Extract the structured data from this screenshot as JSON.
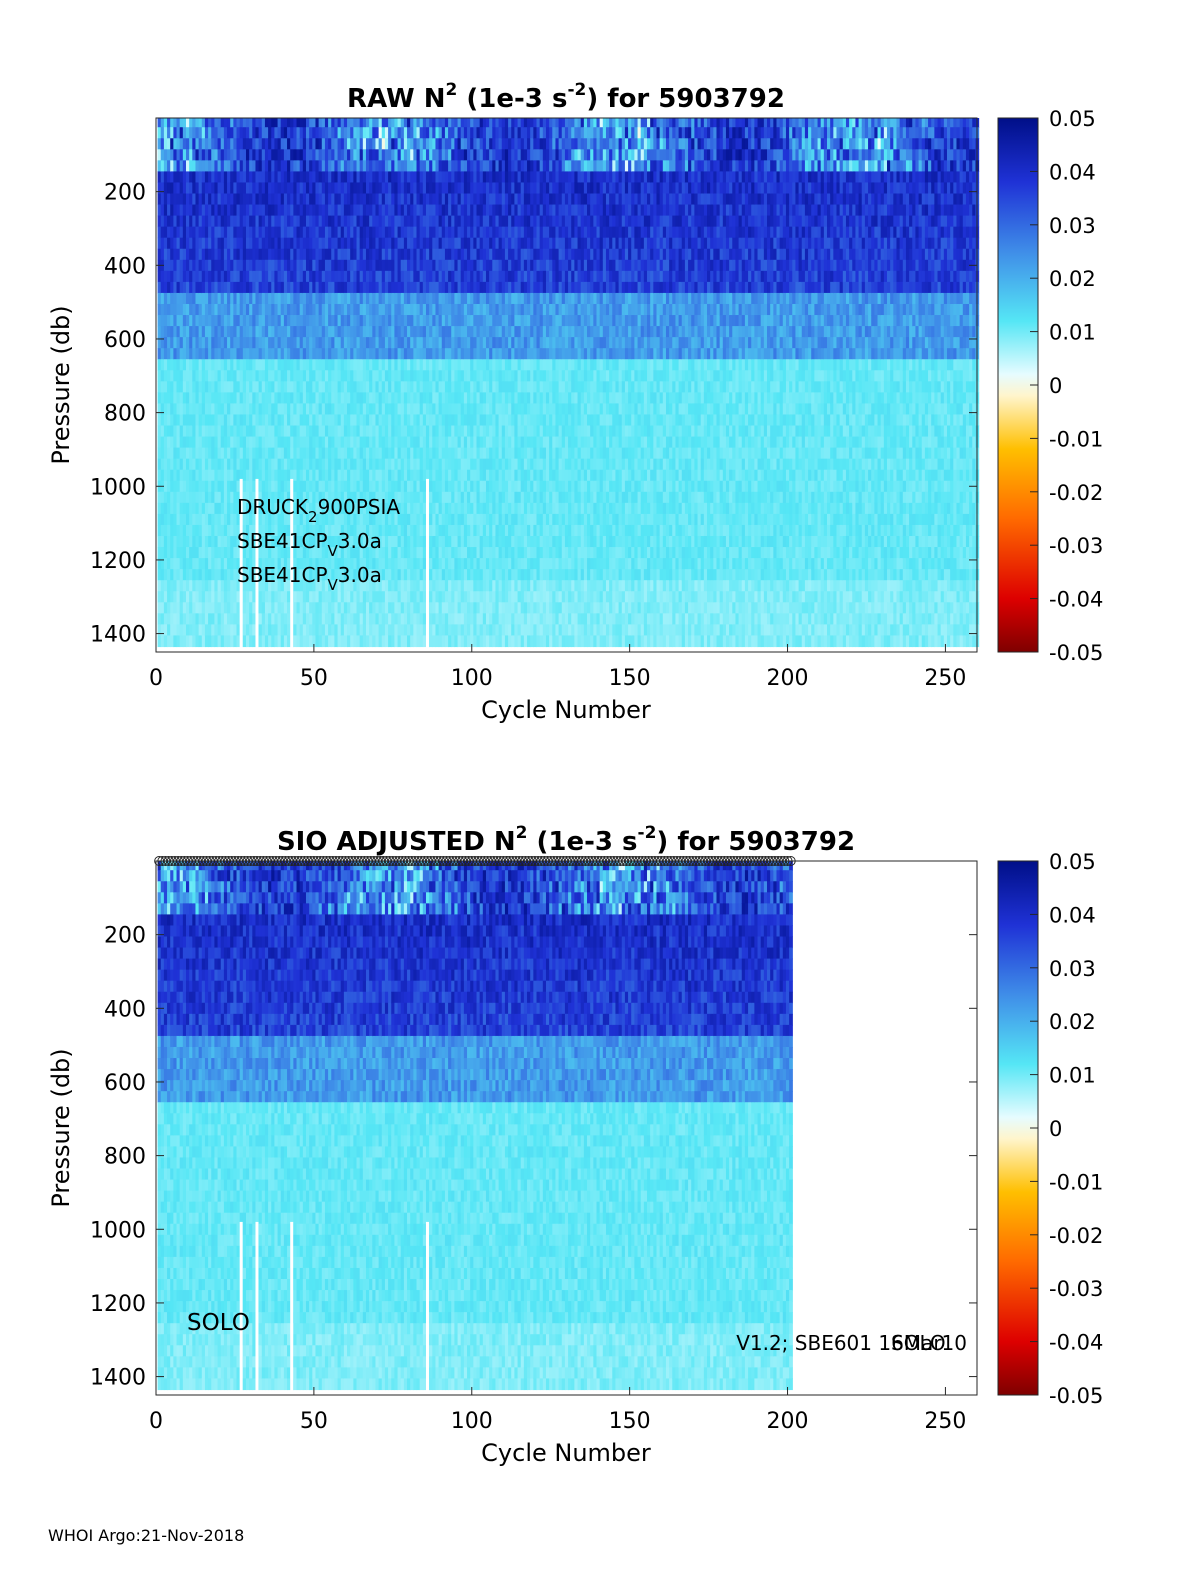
{
  "chart_data": [
    {
      "type": "heatmap",
      "id": "raw",
      "title": {
        "main": "RAW N",
        "sup1": "2",
        "mid": " (1e-3 s",
        "sup2": "-2",
        "end": ") for 5903792"
      },
      "xlabel": "Cycle Number",
      "ylabel": "Pressure (db)",
      "xlim": [
        0,
        260
      ],
      "ylim": [
        1450,
        0
      ],
      "xticks": [
        0,
        50,
        100,
        150,
        200,
        250
      ],
      "yticks": [
        200,
        400,
        600,
        800,
        1000,
        1200,
        1400
      ],
      "data_cycles": [
        1,
        260
      ],
      "colorbar": {
        "min": -0.05,
        "max": 0.05,
        "ticks": [
          "0.05",
          "0.04",
          "0.03",
          "0.02",
          "0.01",
          "0",
          "-0.01",
          "-0.02",
          "-0.03",
          "-0.04",
          "-0.05"
        ]
      },
      "annotations": [
        {
          "base": "DRUCK",
          "sub": "2",
          "rest": "900PSIA"
        },
        {
          "base": "SBE41CP",
          "sub": "V",
          "rest": "3.0a"
        },
        {
          "base": "SBE41CP",
          "sub": "V",
          "rest": "3.0a"
        }
      ]
    },
    {
      "type": "heatmap",
      "id": "adjusted",
      "title": {
        "main": "SIO  ADJUSTED N",
        "sup1": "2",
        "mid": " (1e-3 s",
        "sup2": "-2",
        "end": ") for 5903792"
      },
      "xlabel": "Cycle Number",
      "ylabel": "Pressure (db)",
      "xlim": [
        0,
        260
      ],
      "ylim": [
        1450,
        0
      ],
      "xticks": [
        0,
        50,
        100,
        150,
        200,
        250
      ],
      "yticks": [
        200,
        400,
        600,
        800,
        1000,
        1200,
        1400
      ],
      "data_cycles": [
        1,
        201
      ],
      "colorbar": {
        "min": -0.05,
        "max": 0.05,
        "ticks": [
          "0.05",
          "0.04",
          "0.03",
          "0.02",
          "0.01",
          "0",
          "-0.01",
          "-0.02",
          "-0.03",
          "-0.04",
          "-0.05"
        ]
      },
      "labels": {
        "left": "SOLO",
        "right": "V1.2; SBE601 16Mar10",
        "overlap": "SOLO"
      }
    }
  ],
  "footer": "WHOI Argo:21-Nov-2018"
}
